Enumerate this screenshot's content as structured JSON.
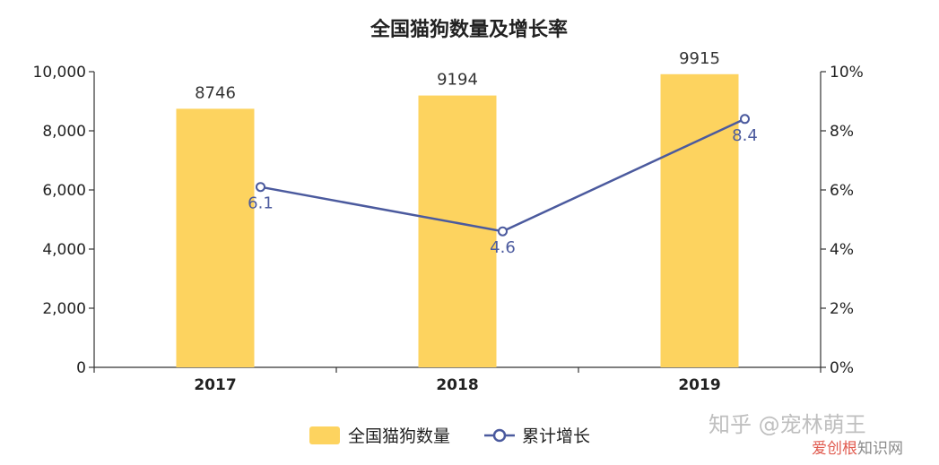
{
  "chart_data": {
    "type": "bar",
    "title": "全国猫狗数量及增长率",
    "categories": [
      "2017",
      "2018",
      "2019"
    ],
    "series": [
      {
        "name": "全国猫狗数量",
        "type": "bar",
        "axis": "left",
        "values": [
          8746,
          9194,
          9915
        ]
      },
      {
        "name": "累计增长",
        "type": "line",
        "axis": "right",
        "values": [
          6.1,
          4.6,
          8.4
        ]
      }
    ],
    "data_labels": {
      "bar": [
        "8746",
        "9194",
        "9915"
      ],
      "line": [
        "6.1",
        "4.6",
        "8.4"
      ]
    },
    "ylim_left": [
      0,
      10000
    ],
    "yticks_left": [
      "0",
      "2,000",
      "4,000",
      "6,000",
      "8,000",
      "10,000"
    ],
    "ylim_right": [
      0,
      10
    ],
    "yticks_right": [
      "0%",
      "2%",
      "4%",
      "6%",
      "8%",
      "10%"
    ],
    "grid": false,
    "legend_position": "bottom-center"
  },
  "watermark": {
    "main": "知乎 @宠林萌王",
    "sub_colored": "爱创根",
    "sub_plain": "知识网"
  },
  "colors": {
    "bar": "#FDD35F",
    "line": "#4B5A9E",
    "axis": "#333333",
    "label_line": "#4B5A9E",
    "watermark_red": "#E05A4E"
  }
}
